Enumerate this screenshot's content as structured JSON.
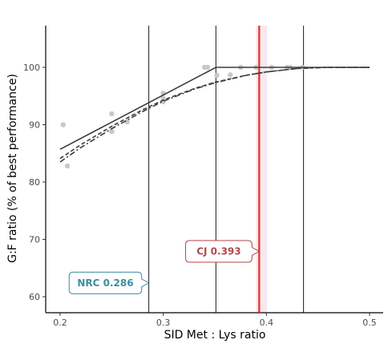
{
  "chart_data": {
    "type": "scatter",
    "xlabel": "SID Met : Lys ratio",
    "ylabel": "G:F ratio (% of best performance)",
    "xlim": [
      0.18,
      0.52
    ],
    "ylim": [
      58,
      107
    ],
    "xticks": [
      0.2,
      0.3,
      0.4,
      0.5
    ],
    "yticks": [
      60,
      70,
      80,
      90,
      100
    ],
    "tick_labels_x": [
      "0.2",
      "0.3",
      "0.4",
      "0.5"
    ],
    "tick_labels_y": [
      "60",
      "70",
      "80",
      "90",
      "100"
    ],
    "grid": false,
    "points": [
      {
        "x": 0.203,
        "y": 90.0
      },
      {
        "x": 0.207,
        "y": 82.8
      },
      {
        "x": 0.25,
        "y": 91.9
      },
      {
        "x": 0.25,
        "y": 88.8
      },
      {
        "x": 0.265,
        "y": 90.5
      },
      {
        "x": 0.3,
        "y": 95.5
      },
      {
        "x": 0.3,
        "y": 94.6
      },
      {
        "x": 0.3,
        "y": 94.0
      },
      {
        "x": 0.34,
        "y": 100.0
      },
      {
        "x": 0.343,
        "y": 100.0
      },
      {
        "x": 0.352,
        "y": 98.6
      },
      {
        "x": 0.365,
        "y": 98.7
      },
      {
        "x": 0.375,
        "y": 100.0
      },
      {
        "x": 0.39,
        "y": 100.0
      },
      {
        "x": 0.405,
        "y": 100.0
      },
      {
        "x": 0.42,
        "y": 100.0
      },
      {
        "x": 0.423,
        "y": 100.0
      },
      {
        "x": 0.435,
        "y": 100.0
      }
    ],
    "series": [
      {
        "style": "solid",
        "x": [
          0.2,
          0.351,
          0.5
        ],
        "y": [
          85.7,
          100.0,
          100.0
        ]
      },
      {
        "style": "dashed",
        "x": [
          0.2,
          0.22,
          0.25,
          0.28,
          0.3,
          0.33,
          0.35,
          0.38,
          0.4,
          0.43,
          0.46,
          0.5
        ],
        "y": [
          84.1,
          86.5,
          89.7,
          92.6,
          94.3,
          96.3,
          97.4,
          98.6,
          99.2,
          99.8,
          100.0,
          100.0
        ]
      },
      {
        "style": "dashdot",
        "x": [
          0.2,
          0.22,
          0.25,
          0.28,
          0.3,
          0.33,
          0.35,
          0.38,
          0.4,
          0.43,
          0.46,
          0.5
        ],
        "y": [
          83.5,
          86.0,
          89.3,
          92.3,
          94.1,
          96.2,
          97.3,
          98.6,
          99.2,
          99.8,
          100.0,
          100.0
        ]
      }
    ],
    "vlines": [
      {
        "x": 0.286,
        "color": "#000000"
      },
      {
        "x": 0.351,
        "color": "#000000"
      },
      {
        "x": 0.393,
        "color": "#e32c1f"
      },
      {
        "x": 0.436,
        "color": "#000000"
      }
    ],
    "annotations": [
      {
        "text": "NRC 0.286",
        "x": 0.286,
        "y": 62.4,
        "color": "#3a8fa0",
        "side": "left"
      },
      {
        "text": "CJ 0.393",
        "x": 0.393,
        "y": 67.9,
        "color": "#b5464a",
        "side": "left"
      }
    ],
    "colors": {
      "point": "#c8c8c8",
      "line": "#3c3c3c",
      "ci_band": "#f6e8f0"
    }
  }
}
